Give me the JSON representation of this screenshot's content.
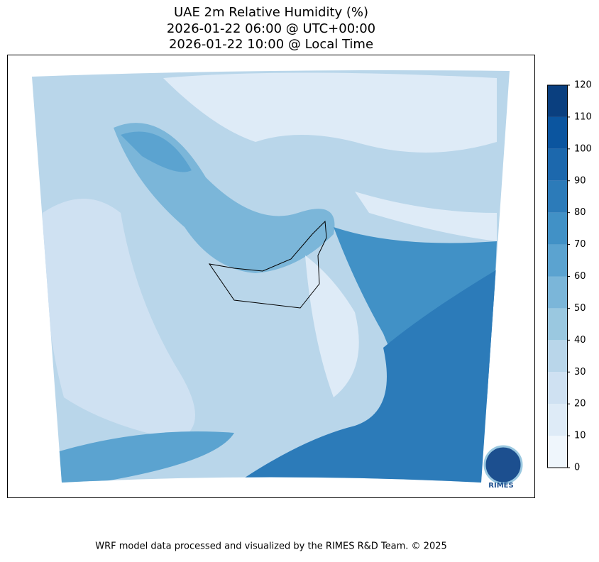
{
  "map": {
    "title_lines": [
      "UAE 2m Relative Humidity (%)",
      "2026-01-22 06:00 @ UTC+00:00",
      "2026-01-22 10:00 @ Local Time"
    ],
    "colorbar": {
      "ticks": [
        0,
        10,
        20,
        30,
        40,
        50,
        60,
        70,
        80,
        90,
        100,
        110,
        120
      ],
      "colors": [
        "#eff6fc",
        "#deebf7",
        "#cfe1f2",
        "#b9d6ea",
        "#9ac8e0",
        "#7bb6d9",
        "#5ba3d0",
        "#4191c6",
        "#2c7bb9",
        "#1c68ad",
        "#0b559f",
        "#0a3f7f"
      ]
    },
    "logo_text": "RIMES",
    "footer": "WRF model data processed and visualized by the RIMES R&D Team. © 2025"
  }
}
